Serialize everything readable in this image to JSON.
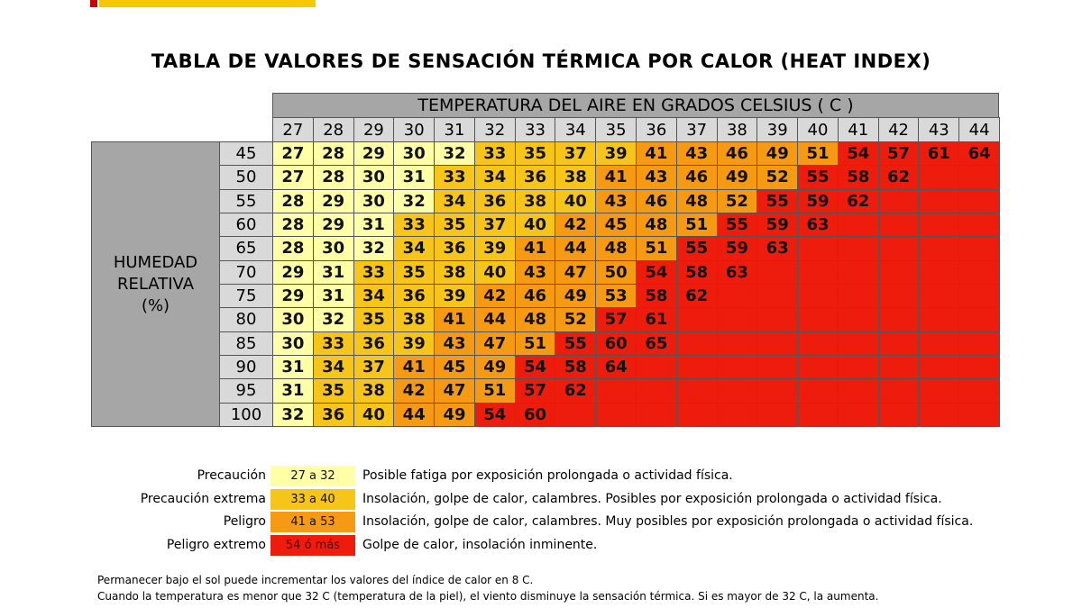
{
  "title": "TABLA DE VALORES DE SENSACIÓN TÉRMICA POR CALOR (HEAT INDEX)",
  "table": {
    "column_header": "TEMPERATURA DEL AIRE EN GRADOS CELSIUS ( C )",
    "row_header": "HUMEDAD RELATIVA (%)",
    "columns": [
      27,
      28,
      29,
      30,
      31,
      32,
      33,
      34,
      35,
      36,
      37,
      38,
      39,
      40,
      41,
      42,
      43,
      44
    ],
    "rows": [
      {
        "label": 45,
        "values": [
          27,
          28,
          29,
          30,
          32,
          33,
          35,
          37,
          39,
          41,
          43,
          46,
          49,
          51,
          54,
          57,
          61,
          64
        ]
      },
      {
        "label": 50,
        "values": [
          27,
          28,
          30,
          31,
          33,
          34,
          36,
          38,
          41,
          43,
          46,
          49,
          52,
          55,
          58,
          62,
          null,
          null
        ]
      },
      {
        "label": 55,
        "values": [
          28,
          29,
          30,
          32,
          34,
          36,
          38,
          40,
          43,
          46,
          48,
          52,
          55,
          59,
          62,
          null,
          null,
          null
        ]
      },
      {
        "label": 60,
        "values": [
          28,
          29,
          31,
          33,
          35,
          37,
          40,
          42,
          45,
          48,
          51,
          55,
          59,
          63,
          null,
          null,
          null,
          null
        ]
      },
      {
        "label": 65,
        "values": [
          28,
          30,
          32,
          34,
          36,
          39,
          41,
          44,
          48,
          51,
          55,
          59,
          63,
          null,
          null,
          null,
          null,
          null
        ]
      },
      {
        "label": 70,
        "values": [
          29,
          31,
          33,
          35,
          38,
          40,
          43,
          47,
          50,
          54,
          58,
          63,
          null,
          null,
          null,
          null,
          null,
          null
        ]
      },
      {
        "label": 75,
        "values": [
          29,
          31,
          34,
          36,
          39,
          42,
          46,
          49,
          53,
          58,
          62,
          null,
          null,
          null,
          null,
          null,
          null,
          null
        ]
      },
      {
        "label": 80,
        "values": [
          30,
          32,
          35,
          38,
          41,
          44,
          48,
          52,
          57,
          61,
          null,
          null,
          null,
          null,
          null,
          null,
          null,
          null
        ]
      },
      {
        "label": 85,
        "values": [
          30,
          33,
          36,
          39,
          43,
          47,
          51,
          55,
          60,
          65,
          null,
          null,
          null,
          null,
          null,
          null,
          null,
          null
        ]
      },
      {
        "label": 90,
        "values": [
          31,
          34,
          37,
          41,
          45,
          49,
          54,
          58,
          64,
          null,
          null,
          null,
          null,
          null,
          null,
          null,
          null,
          null
        ]
      },
      {
        "label": 95,
        "values": [
          31,
          35,
          38,
          42,
          47,
          51,
          57,
          62,
          null,
          null,
          null,
          null,
          null,
          null,
          null,
          null,
          null,
          null
        ]
      },
      {
        "label": 100,
        "values": [
          32,
          36,
          40,
          44,
          49,
          54,
          60,
          null,
          null,
          null,
          null,
          null,
          null,
          null,
          null,
          null,
          null,
          null
        ]
      }
    ]
  },
  "legend": [
    {
      "label": "Precaución",
      "range": "27 a 32",
      "color": "#ffffa8",
      "description": "Posible fatiga por exposición prolongada o actividad física."
    },
    {
      "label": "Precaución extrema",
      "range": "33 a 40",
      "color": "#f7c51a",
      "description": "Insolación, golpe de calor, calambres. Posibles por exposición prolongada o actividad física."
    },
    {
      "label": "Peligro",
      "range": "41 a 53",
      "color": "#f59a12",
      "description": "Insolación, golpe de calor, calambres. Muy posibles por exposición prolongada o actividad física."
    },
    {
      "label": "Peligro extremo",
      "range": "54 ó más",
      "color": "#ee1c0c",
      "description": "Golpe de calor, insolación inminente."
    }
  ],
  "notes": [
    "Permanecer bajo el sol puede incrementar los valores del índice de calor en 8 C.",
    "Cuando la temperatura es menor que 32 C (temperatura de la piel), el viento disminuye la sensación térmica. Si es mayor de 32 C, la aumenta."
  ]
}
